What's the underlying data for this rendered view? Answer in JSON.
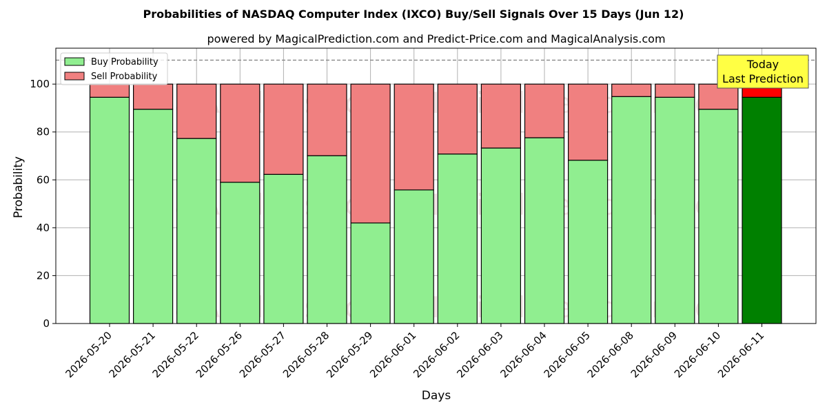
{
  "chart_data": {
    "type": "bar",
    "stacked": true,
    "title": "Probabilities of NASDAQ Computer Index (IXCO) Buy/Sell Signals Over 15 Days (Jun 12)",
    "subtitle": "powered by MagicalPrediction.com and Predict-Price.com and MagicalAnalysis.com",
    "xlabel": "Days",
    "ylabel": "Probability",
    "ylim": [
      0,
      115
    ],
    "yticks": [
      0,
      20,
      40,
      60,
      80,
      100
    ],
    "grid": true,
    "legend_position": "top-left",
    "categories": [
      "2026-05-20",
      "2026-05-21",
      "2026-05-22",
      "2026-05-26",
      "2026-05-27",
      "2026-05-28",
      "2026-05-29",
      "2026-06-01",
      "2026-06-02",
      "2026-06-03",
      "2026-06-04",
      "2026-06-05",
      "2026-06-08",
      "2026-06-09",
      "2026-06-10",
      "2026-06-11"
    ],
    "series": [
      {
        "name": "Buy Probability",
        "color": "#90ee90",
        "values": [
          94.5,
          89.5,
          77.3,
          59.0,
          62.3,
          70.1,
          42.0,
          55.8,
          70.8,
          73.3,
          77.6,
          68.2,
          94.8,
          94.5,
          89.5,
          94.5
        ]
      },
      {
        "name": "Sell Probability",
        "color": "#f08080",
        "values": [
          5.5,
          10.5,
          22.7,
          41.0,
          37.7,
          29.9,
          58.0,
          44.2,
          29.2,
          26.7,
          22.4,
          31.8,
          5.2,
          5.5,
          10.5,
          5.5
        ]
      }
    ],
    "highlight": {
      "index": 15,
      "buy_color": "#008000",
      "sell_color": "#ff0000"
    },
    "reference_line": {
      "y": 110,
      "style": "dashed",
      "color": "#808080"
    },
    "annotation": {
      "line1": "Today",
      "line2": "Last Prediction",
      "background": "#ffff44"
    },
    "watermarks": [
      "MagicalAnalysis.com",
      "MagicalPrediction.com"
    ]
  }
}
